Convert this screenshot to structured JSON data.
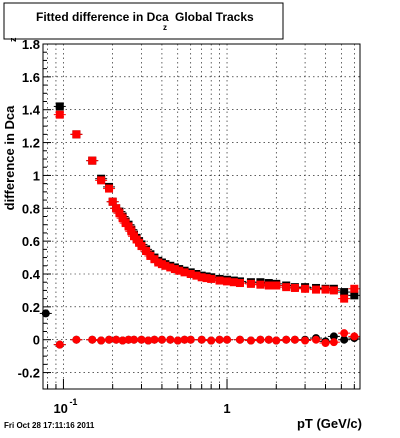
{
  "chart_data": {
    "type": "scatter",
    "title": "Fitted difference in Dca",
    "title_subscript": "z",
    "title_suffix": "Global Tracks",
    "xlabel": "pT (GeV/c)",
    "ylabel": "difference in Dca",
    "ylabel_suffix": "z",
    "x_scale": "log",
    "xlim": [
      0.075,
      6.5
    ],
    "ylim": [
      -0.3,
      1.8
    ],
    "x_ticks": [
      {
        "value": 0.1,
        "base": "10",
        "exponent": "-1"
      },
      {
        "value": 1,
        "label": "1"
      }
    ],
    "y_ticks": [
      "-0.2",
      "0",
      "0.2",
      "0.4",
      "0.6",
      "0.8",
      "1",
      "1.2",
      "1.4",
      "1.6",
      "1.8"
    ],
    "grid": true,
    "timestamp": "Fri Oct 28 17:11:16 2011",
    "series": [
      {
        "marker": "square",
        "color": "#000000",
        "x": [
          0.095,
          0.12,
          0.15,
          0.17,
          0.19,
          0.2,
          0.21,
          0.22,
          0.23,
          0.24,
          0.25,
          0.26,
          0.27,
          0.28,
          0.29,
          0.3,
          0.32,
          0.34,
          0.36,
          0.38,
          0.4,
          0.42,
          0.45,
          0.48,
          0.51,
          0.55,
          0.6,
          0.65,
          0.7,
          0.75,
          0.8,
          0.9,
          1.0,
          1.1,
          1.2,
          1.4,
          1.6,
          1.8,
          2.0,
          2.3,
          2.6,
          3.0,
          3.5,
          4.0,
          4.5,
          5.2,
          6.0
        ],
        "y": [
          1.42,
          1.25,
          1.09,
          0.98,
          0.93,
          0.84,
          0.8,
          0.78,
          0.75,
          0.72,
          0.7,
          0.67,
          0.64,
          0.62,
          0.6,
          0.58,
          0.55,
          0.52,
          0.5,
          0.48,
          0.47,
          0.46,
          0.45,
          0.44,
          0.43,
          0.42,
          0.41,
          0.4,
          0.39,
          0.385,
          0.38,
          0.37,
          0.365,
          0.36,
          0.355,
          0.35,
          0.35,
          0.345,
          0.34,
          0.33,
          0.32,
          0.32,
          0.315,
          0.31,
          0.31,
          0.29,
          0.27
        ]
      },
      {
        "marker": "square",
        "color": "#ff0000",
        "x": [
          0.095,
          0.12,
          0.15,
          0.17,
          0.19,
          0.2,
          0.21,
          0.22,
          0.23,
          0.24,
          0.25,
          0.26,
          0.27,
          0.28,
          0.29,
          0.3,
          0.32,
          0.34,
          0.36,
          0.38,
          0.4,
          0.42,
          0.45,
          0.48,
          0.51,
          0.55,
          0.6,
          0.65,
          0.7,
          0.75,
          0.8,
          0.9,
          1.0,
          1.1,
          1.2,
          1.4,
          1.6,
          1.8,
          2.0,
          2.3,
          2.6,
          3.0,
          3.5,
          4.0,
          4.5,
          5.2,
          6.0
        ],
        "y": [
          1.37,
          1.25,
          1.09,
          0.97,
          0.92,
          0.84,
          0.8,
          0.77,
          0.74,
          0.71,
          0.69,
          0.66,
          0.63,
          0.61,
          0.59,
          0.57,
          0.54,
          0.51,
          0.49,
          0.47,
          0.46,
          0.45,
          0.44,
          0.43,
          0.42,
          0.41,
          0.4,
          0.39,
          0.38,
          0.375,
          0.37,
          0.36,
          0.355,
          0.35,
          0.345,
          0.34,
          0.335,
          0.33,
          0.33,
          0.32,
          0.315,
          0.31,
          0.305,
          0.305,
          0.3,
          0.25,
          0.31
        ]
      },
      {
        "marker": "circle",
        "color": "#000000",
        "x": [
          0.078,
          0.095,
          0.12,
          0.15,
          0.17,
          0.19,
          0.21,
          0.23,
          0.25,
          0.27,
          0.3,
          0.33,
          0.36,
          0.4,
          0.45,
          0.5,
          0.55,
          0.6,
          0.7,
          0.8,
          0.9,
          1.0,
          1.2,
          1.4,
          1.6,
          1.8,
          2.0,
          2.3,
          2.6,
          3.0,
          3.5,
          4.0,
          4.5,
          5.2,
          6.0
        ],
        "y": [
          0.16,
          -0.03,
          0.0,
          0.0,
          -0.005,
          0.0,
          0.0,
          -0.005,
          0.0,
          0.0,
          0.0,
          -0.005,
          0.0,
          0.0,
          0.0,
          -0.005,
          0.0,
          0.0,
          0.0,
          -0.005,
          0.0,
          0.0,
          0.0,
          -0.005,
          0.0,
          0.0,
          -0.005,
          0.0,
          0.0,
          0.0,
          0.01,
          -0.01,
          0.02,
          0.0,
          0.01
        ]
      },
      {
        "marker": "circle",
        "color": "#ff0000",
        "x": [
          0.095,
          0.12,
          0.15,
          0.17,
          0.19,
          0.21,
          0.23,
          0.25,
          0.27,
          0.3,
          0.33,
          0.36,
          0.4,
          0.45,
          0.5,
          0.55,
          0.6,
          0.7,
          0.8,
          0.9,
          1.0,
          1.2,
          1.4,
          1.6,
          1.8,
          2.0,
          2.3,
          2.6,
          3.0,
          3.5,
          4.0,
          4.5,
          5.2,
          6.0
        ],
        "y": [
          -0.03,
          0.0,
          0.0,
          -0.005,
          0.0,
          0.0,
          -0.005,
          0.0,
          0.0,
          0.0,
          -0.005,
          0.0,
          0.0,
          0.0,
          -0.005,
          0.0,
          0.0,
          0.0,
          -0.005,
          0.0,
          0.0,
          0.0,
          -0.005,
          0.0,
          0.0,
          -0.005,
          0.0,
          0.0,
          -0.005,
          0.0,
          -0.02,
          -0.015,
          0.04,
          0.02
        ]
      }
    ]
  }
}
